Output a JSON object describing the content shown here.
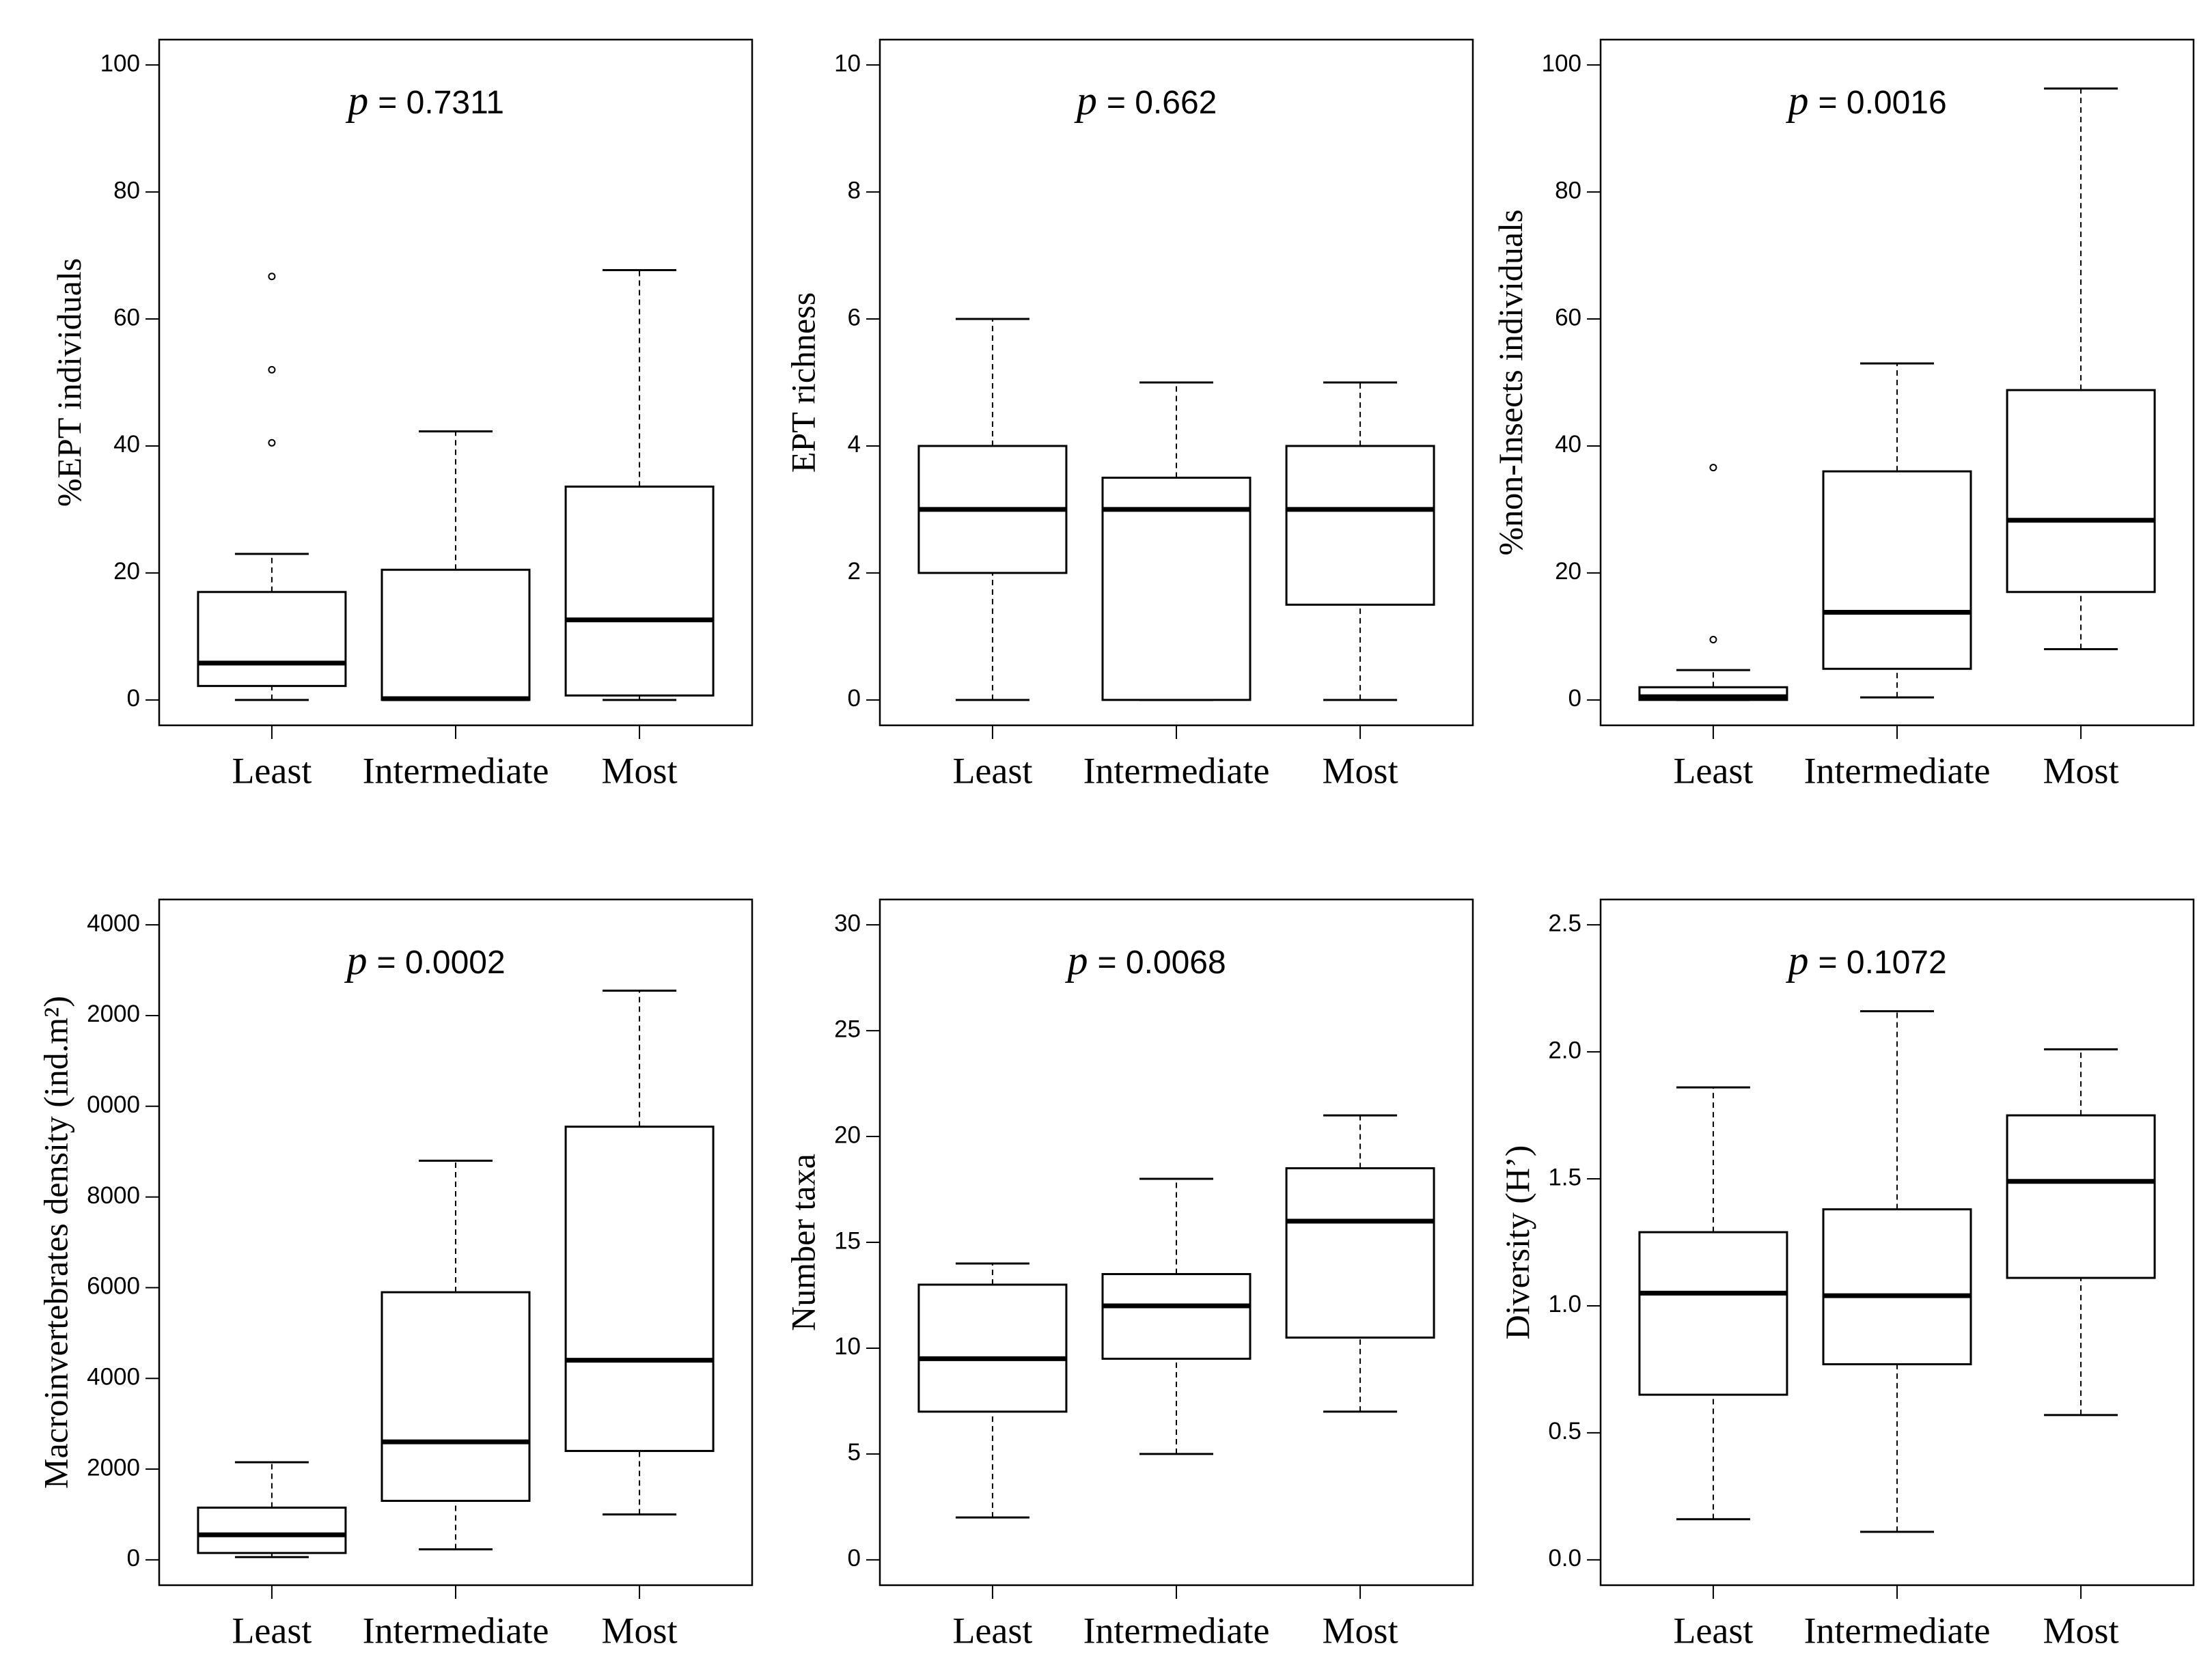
{
  "chart_data": [
    {
      "type": "box",
      "y_label": "%EPT individuals",
      "annotation_symbol": "p",
      "annotation": "= 0.7311",
      "categories": [
        "Least",
        "Intermediate",
        "Most"
      ],
      "ylim": [
        -4,
        104
      ],
      "yticks": [
        0,
        20,
        40,
        60,
        80,
        100
      ],
      "boxes": [
        {
          "low": 0,
          "q1": 2.2,
          "median": 5.8,
          "q3": 17,
          "high": 23,
          "outliers": [
            40.5,
            52,
            66.7
          ]
        },
        {
          "low": 0,
          "q1": 0,
          "median": 0.2,
          "q3": 20.5,
          "high": 42.3,
          "outliers": []
        },
        {
          "low": 0,
          "q1": 0.7,
          "median": 12.6,
          "q3": 33.6,
          "high": 67.7,
          "outliers": []
        }
      ]
    },
    {
      "type": "box",
      "y_label": "EPT richness",
      "annotation_symbol": "p",
      "annotation": "= 0.662",
      "categories": [
        "Least",
        "Intermediate",
        "Most"
      ],
      "ylim": [
        -0.4,
        10.4
      ],
      "yticks": [
        0,
        2,
        4,
        6,
        8,
        10
      ],
      "boxes": [
        {
          "low": 0,
          "q1": 2,
          "median": 3,
          "q3": 4,
          "high": 6,
          "outliers": []
        },
        {
          "low": 0,
          "q1": 0,
          "median": 3,
          "q3": 3.5,
          "high": 5,
          "outliers": []
        },
        {
          "low": 0,
          "q1": 1.5,
          "median": 3,
          "q3": 4,
          "high": 5,
          "outliers": []
        }
      ]
    },
    {
      "type": "box",
      "y_label": "%non-Insects individuals",
      "annotation_symbol": "p",
      "annotation": "= 0.0016",
      "categories": [
        "Least",
        "Intermediate",
        "Most"
      ],
      "ylim": [
        -4,
        104
      ],
      "yticks": [
        0,
        20,
        40,
        60,
        80,
        100
      ],
      "boxes": [
        {
          "low": 0,
          "q1": 0,
          "median": 0.5,
          "q3": 2,
          "high": 4.7,
          "outliers": [
            9.5,
            36.6
          ]
        },
        {
          "low": 0.4,
          "q1": 4.9,
          "median": 13.8,
          "q3": 36,
          "high": 53,
          "outliers": []
        },
        {
          "low": 8,
          "q1": 17,
          "median": 28.3,
          "q3": 48.8,
          "high": 96.3,
          "outliers": []
        }
      ]
    },
    {
      "type": "box",
      "y_label": "Macroinvertebrates density (ind.m²)",
      "annotation_symbol": "p",
      "annotation": "= 0.0002",
      "categories": [
        "Least",
        "Intermediate",
        "Most"
      ],
      "ylim": [
        -560,
        14560
      ],
      "yticks": [
        0,
        2000,
        4000,
        6000,
        8000,
        {
          "value": 10000,
          "label": "0000"
        },
        {
          "value": 12000,
          "label": "2000"
        },
        {
          "value": 14000,
          "label": "4000"
        }
      ],
      "boxes": [
        {
          "low": 60,
          "q1": 150,
          "median": 550,
          "q3": 1150,
          "high": 2150,
          "outliers": []
        },
        {
          "low": 230,
          "q1": 1300,
          "median": 2600,
          "q3": 5900,
          "high": 8800,
          "outliers": []
        },
        {
          "low": 1000,
          "q1": 2400,
          "median": 4400,
          "q3": 9550,
          "high": 12550,
          "outliers": []
        }
      ]
    },
    {
      "type": "box",
      "y_label": "Number taxa",
      "annotation_symbol": "p",
      "annotation": "= 0.0068",
      "categories": [
        "Least",
        "Intermediate",
        "Most"
      ],
      "ylim": [
        -1.2,
        31.2
      ],
      "yticks": [
        0,
        5,
        10,
        15,
        20,
        25,
        30
      ],
      "boxes": [
        {
          "low": 2,
          "q1": 7,
          "median": 9.5,
          "q3": 13,
          "high": 14,
          "outliers": []
        },
        {
          "low": 5,
          "q1": 9.5,
          "median": 12,
          "q3": 13.5,
          "high": 18,
          "outliers": []
        },
        {
          "low": 7,
          "q1": 10.5,
          "median": 16,
          "q3": 18.5,
          "high": 21,
          "outliers": []
        }
      ]
    },
    {
      "type": "box",
      "y_label": "Diversity (H’)",
      "annotation_symbol": "p",
      "annotation": "= 0.1072",
      "categories": [
        "Least",
        "Intermediate",
        "Most"
      ],
      "ylim": [
        -0.1,
        2.6
      ],
      "yticks": [
        {
          "value": 0,
          "label": "0.0"
        },
        0.5,
        {
          "value": 1,
          "label": "1.0"
        },
        1.5,
        {
          "value": 2,
          "label": "2.0"
        },
        2.5
      ],
      "boxes": [
        {
          "low": 0.16,
          "q1": 0.65,
          "median": 1.05,
          "q3": 1.29,
          "high": 1.86,
          "outliers": []
        },
        {
          "low": 0.11,
          "q1": 0.77,
          "median": 1.04,
          "q3": 1.38,
          "high": 2.16,
          "outliers": []
        },
        {
          "low": 0.57,
          "q1": 1.11,
          "median": 1.49,
          "q3": 1.75,
          "high": 2.01,
          "outliers": []
        }
      ]
    }
  ]
}
